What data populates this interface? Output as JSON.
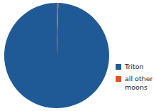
{
  "chart_data": {
    "type": "pie",
    "categories": [
      "Triton",
      "all other moons"
    ],
    "values": [
      99.5,
      0.5
    ],
    "colors": [
      "#1f5a96",
      "#e8501e"
    ],
    "legend": "right"
  }
}
